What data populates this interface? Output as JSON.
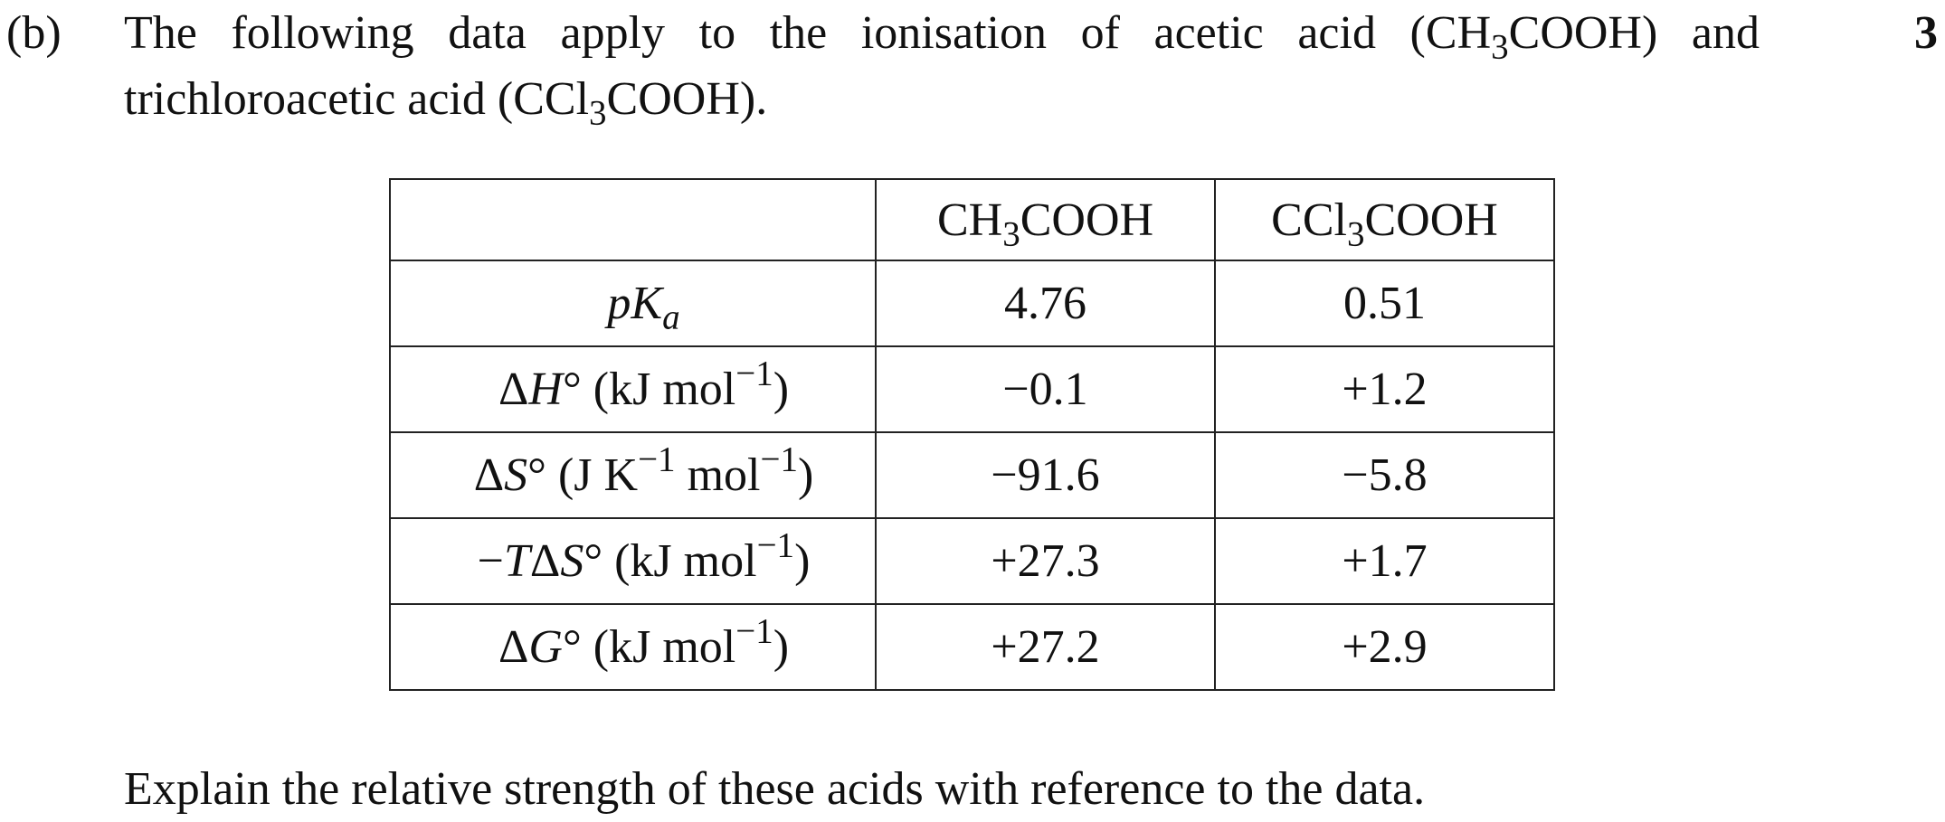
{
  "part": "(b)",
  "marks": "3",
  "intro": [
    "The following data apply to the ionisation of acetic acid (",
    "CH",
    {
      "text": "3",
      "style": "sub"
    },
    "COOH",
    ") and trichloroacetic acid (",
    "CCl",
    {
      "text": "3",
      "style": "sub"
    },
    "COOH",
    ")."
  ],
  "table": {
    "header": [
      [
        "CH",
        {
          "text": "3",
          "style": "sub"
        },
        "COOH"
      ],
      [
        "CCl",
        {
          "text": "3",
          "style": "sub"
        },
        "COOH"
      ]
    ],
    "rows": [
      {
        "label": [
          {
            "text": "pK",
            "style": "i"
          },
          {
            "text": "a",
            "style": "sub-i"
          }
        ],
        "cells": [
          "4.76",
          "0.51"
        ]
      },
      {
        "label": [
          "Δ",
          {
            "text": "H",
            "style": "i"
          },
          "° (kJ mol",
          {
            "text": "−1",
            "style": "sup"
          },
          ")"
        ],
        "cells": [
          "−0.1",
          "+1.2"
        ]
      },
      {
        "label": [
          "Δ",
          {
            "text": "S",
            "style": "i"
          },
          "° (J K",
          {
            "text": "−1",
            "style": "sup"
          },
          " mol",
          {
            "text": "−1",
            "style": "sup"
          },
          ")"
        ],
        "cells": [
          "−91.6",
          "−5.8"
        ]
      },
      {
        "label": [
          "−",
          {
            "text": "T",
            "style": "i"
          },
          "Δ",
          {
            "text": "S",
            "style": "i"
          },
          "° (kJ mol",
          {
            "text": "−1",
            "style": "sup"
          },
          ")"
        ],
        "cells": [
          "+27.3",
          "+1.7"
        ]
      },
      {
        "label": [
          "Δ",
          {
            "text": "G",
            "style": "i"
          },
          "° (kJ mol",
          {
            "text": "−1",
            "style": "sup"
          },
          ")"
        ],
        "cells": [
          "+27.2",
          "+2.9"
        ]
      }
    ]
  },
  "question": "Explain the relative strength of these acids with reference to the data."
}
